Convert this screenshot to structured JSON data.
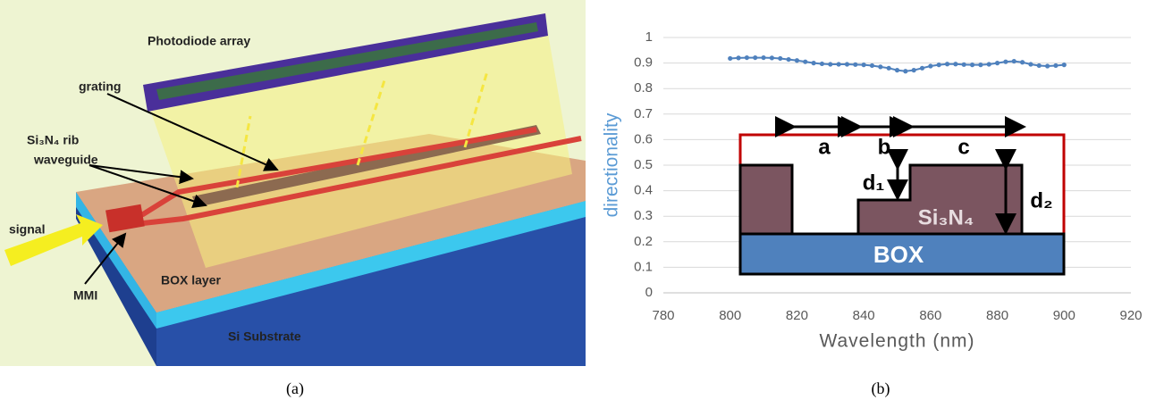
{
  "illustration": {
    "labels": {
      "photodiode": "Photodiode array",
      "grating": "grating",
      "rib_line1": "Si₃N₄ rib",
      "rib_line2": "waveguide",
      "signal": "signal",
      "mmi": "MMI",
      "box_layer": "BOX layer",
      "substrate": "Si Substrate"
    },
    "caption": "(a)"
  },
  "chart_data": {
    "type": "line",
    "x_label": "Wavelength (nm)",
    "y_label": "directionality",
    "x": [
      800,
      802.5,
      805,
      807.5,
      810,
      812.5,
      815,
      817.5,
      820,
      822.5,
      825,
      827.5,
      830,
      832.5,
      835,
      837.5,
      840,
      842.5,
      845,
      847.5,
      850,
      852.5,
      855,
      857.5,
      860,
      862.5,
      865,
      867.5,
      870,
      872.5,
      875,
      877.5,
      880,
      882.5,
      885,
      887.5,
      890,
      892.5,
      895,
      897.5,
      900
    ],
    "series": [
      {
        "color": "#4f81bd",
        "values": [
          0.918,
          0.92,
          0.921,
          0.921,
          0.921,
          0.92,
          0.918,
          0.914,
          0.91,
          0.905,
          0.9,
          0.897,
          0.895,
          0.895,
          0.895,
          0.894,
          0.893,
          0.89,
          0.885,
          0.88,
          0.872,
          0.868,
          0.872,
          0.88,
          0.888,
          0.893,
          0.896,
          0.896,
          0.894,
          0.893,
          0.893,
          0.895,
          0.9,
          0.905,
          0.907,
          0.903,
          0.895,
          0.89,
          0.888,
          0.89,
          0.893
        ]
      }
    ],
    "xlim": [
      780,
      920
    ],
    "xticks": [
      780,
      800,
      820,
      840,
      860,
      880,
      900,
      920
    ],
    "ylim": [
      0,
      1
    ],
    "yticks": [
      0,
      0.1,
      0.2,
      0.3,
      0.4,
      0.5,
      0.6,
      0.7,
      0.8,
      0.9,
      1
    ],
    "grid": true,
    "annotations": {
      "a": "a",
      "b": "b",
      "c": "c",
      "d1": "d₁",
      "d2": "d₂",
      "core": "Si₃N₄",
      "box": "BOX"
    },
    "caption": "(b)"
  }
}
